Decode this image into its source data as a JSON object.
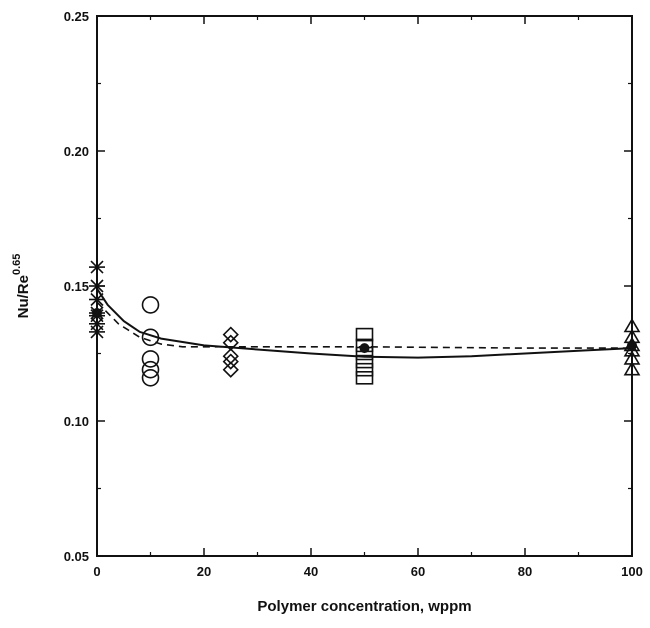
{
  "chart_data": {
    "type": "scatter",
    "xlabel": "Polymer concentration, wppm",
    "ylabel": {
      "base": "Nu/Re",
      "exponent": "0.65"
    },
    "xlim": [
      0,
      100
    ],
    "ylim": [
      0.05,
      0.25
    ],
    "x_ticks": [
      0,
      20,
      40,
      60,
      80,
      100
    ],
    "x_tick_labels": [
      "0",
      "20",
      "40",
      "60",
      "80",
      "100"
    ],
    "y_ticks": [
      0.05,
      0.1,
      0.15,
      0.2,
      0.25
    ],
    "y_tick_labels": [
      "0.05",
      "0.10",
      "0.15",
      "0.20",
      "0.25"
    ],
    "grid": false,
    "series": [
      {
        "marker": "asterisk",
        "points": [
          [
            0,
            0.157
          ],
          [
            0,
            0.15
          ],
          [
            0,
            0.145
          ],
          [
            0,
            0.14
          ],
          [
            0,
            0.139
          ],
          [
            0,
            0.136
          ],
          [
            0,
            0.133
          ]
        ]
      },
      {
        "marker": "circle",
        "points": [
          [
            10,
            0.143
          ],
          [
            10,
            0.131
          ],
          [
            10,
            0.123
          ],
          [
            10,
            0.119
          ],
          [
            10,
            0.116
          ]
        ]
      },
      {
        "marker": "diamond",
        "points": [
          [
            25,
            0.132
          ],
          [
            25,
            0.129
          ],
          [
            25,
            0.124
          ],
          [
            25,
            0.122
          ],
          [
            25,
            0.119
          ]
        ]
      },
      {
        "marker": "square",
        "points": [
          [
            50,
            0.132
          ],
          [
            50,
            0.128
          ],
          [
            50,
            0.125
          ],
          [
            50,
            0.122
          ],
          [
            50,
            0.119
          ],
          [
            50,
            0.116
          ]
        ]
      },
      {
        "marker": "triangle",
        "points": [
          [
            100,
            0.135
          ],
          [
            100,
            0.131
          ],
          [
            100,
            0.128
          ],
          [
            100,
            0.126
          ],
          [
            100,
            0.123
          ],
          [
            100,
            0.119
          ]
        ]
      },
      {
        "marker": "filled-circle",
        "points": [
          [
            0,
            0.14
          ],
          [
            50,
            0.127
          ],
          [
            100,
            0.128
          ]
        ]
      }
    ],
    "fit_solid": [
      [
        0,
        0.149
      ],
      [
        2,
        0.143
      ],
      [
        5,
        0.137
      ],
      [
        8,
        0.133
      ],
      [
        12,
        0.1305
      ],
      [
        20,
        0.128
      ],
      [
        30,
        0.1265
      ],
      [
        40,
        0.125
      ],
      [
        50,
        0.1238
      ],
      [
        60,
        0.1235
      ],
      [
        70,
        0.124
      ],
      [
        80,
        0.125
      ],
      [
        90,
        0.126
      ],
      [
        100,
        0.127
      ]
    ],
    "fit_dashed": [
      [
        0,
        0.144
      ],
      [
        4,
        0.136
      ],
      [
        8,
        0.131
      ],
      [
        12,
        0.1285
      ],
      [
        16,
        0.1275
      ],
      [
        30,
        0.1275
      ],
      [
        50,
        0.1275
      ],
      [
        80,
        0.127
      ],
      [
        100,
        0.127
      ]
    ]
  }
}
